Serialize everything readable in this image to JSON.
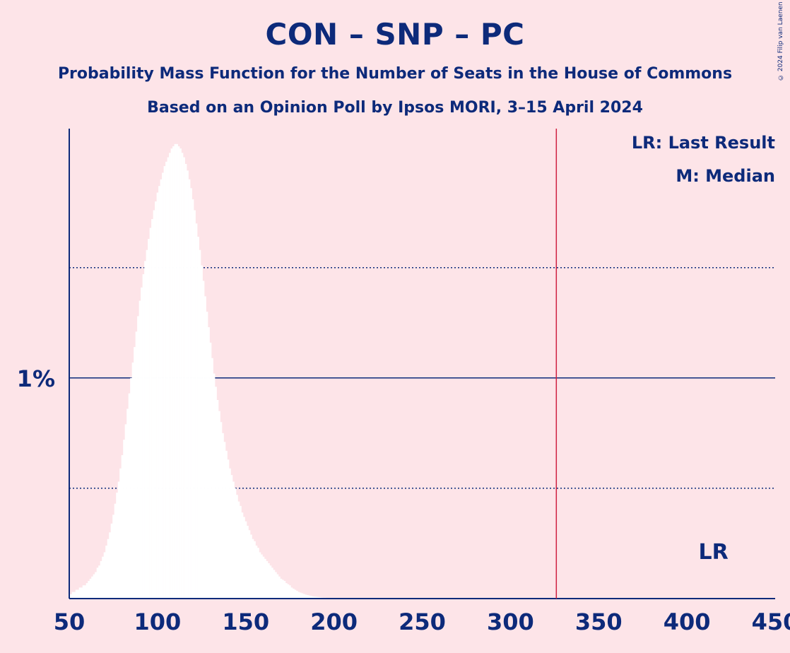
{
  "chart_data": {
    "type": "bar",
    "title": "CON – SNP – PC",
    "subtitle_lines": [
      "Probability Mass Function for the Number of Seats in the House of Commons",
      "Based on an Opinion Poll by Ipsos MORI, 3–15 April 2024"
    ],
    "xlabel": "",
    "ylabel": "",
    "x_ticks": [
      50,
      100,
      150,
      200,
      250,
      300,
      350,
      400,
      450
    ],
    "x_tick_labels": [
      "50",
      "100",
      "150",
      "200",
      "250",
      "300",
      "350",
      "400",
      "450"
    ],
    "xlim": [
      50,
      450
    ],
    "ylim": [
      0,
      2.13
    ],
    "y_tick_labels": [
      {
        "value": 1,
        "label": "1%"
      }
    ],
    "y_gridlines": [
      0.5,
      1.0,
      1.5
    ],
    "grid": true,
    "last_result": 326,
    "last_result_label": "LR",
    "legend": [
      "LR: Last Result",
      "M: Median"
    ],
    "legend_placement": "top-right",
    "bar_color": "#ffffff",
    "line_color": "#0d2a7a",
    "lr_color": "#d02040",
    "distribution": {
      "x_start": 50,
      "values": [
        0.02,
        0.02,
        0.03,
        0.03,
        0.04,
        0.04,
        0.05,
        0.05,
        0.06,
        0.06,
        0.07,
        0.08,
        0.09,
        0.1,
        0.11,
        0.12,
        0.14,
        0.15,
        0.17,
        0.19,
        0.21,
        0.24,
        0.27,
        0.3,
        0.34,
        0.38,
        0.43,
        0.48,
        0.53,
        0.59,
        0.65,
        0.72,
        0.79,
        0.86,
        0.93,
        1.0,
        1.07,
        1.14,
        1.21,
        1.28,
        1.35,
        1.41,
        1.47,
        1.53,
        1.58,
        1.63,
        1.68,
        1.72,
        1.76,
        1.8,
        1.84,
        1.87,
        1.9,
        1.93,
        1.96,
        1.98,
        2.0,
        2.02,
        2.04,
        2.05,
        2.06,
        2.06,
        2.05,
        2.04,
        2.02,
        2.0,
        1.97,
        1.94,
        1.9,
        1.86,
        1.81,
        1.76,
        1.7,
        1.64,
        1.58,
        1.51,
        1.44,
        1.37,
        1.3,
        1.23,
        1.16,
        1.09,
        1.02,
        0.96,
        0.9,
        0.85,
        0.8,
        0.75,
        0.71,
        0.67,
        0.63,
        0.59,
        0.56,
        0.53,
        0.5,
        0.47,
        0.44,
        0.42,
        0.39,
        0.37,
        0.35,
        0.33,
        0.31,
        0.29,
        0.27,
        0.26,
        0.24,
        0.23,
        0.21,
        0.2,
        0.19,
        0.18,
        0.17,
        0.16,
        0.15,
        0.14,
        0.13,
        0.12,
        0.11,
        0.1,
        0.09,
        0.085,
        0.08,
        0.07,
        0.065,
        0.06,
        0.05,
        0.045,
        0.04,
        0.035,
        0.03,
        0.027,
        0.024,
        0.021,
        0.018,
        0.016,
        0.014,
        0.012,
        0.01,
        0.009,
        0.008,
        0.007,
        0.006,
        0.005,
        0.004,
        0.004,
        0.003,
        0.003,
        0.002,
        0.002,
        0.002,
        0.001,
        0.001,
        0.001,
        0.001,
        0.001,
        0.001,
        0.001,
        0.001,
        0.001
      ]
    }
  },
  "copyright": "© 2024 Filip van Laenen"
}
